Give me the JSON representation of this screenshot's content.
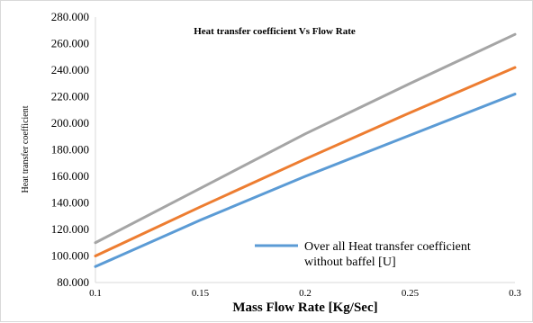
{
  "chart_data": {
    "type": "line",
    "title": "Heat transfer coefficient Vs Flow Rate",
    "xlabel": "Mass Flow Rate [Kg/Sec]",
    "ylabel": "Heat transfer coefficient",
    "xlim": [
      0.1,
      0.3
    ],
    "ylim": [
      80,
      280
    ],
    "x_ticks": [
      "0.1",
      "0.15",
      "0.2",
      "0.25",
      "0.3"
    ],
    "y_ticks": [
      "80.000",
      "100.000",
      "120.000",
      "140.000",
      "160.000",
      "180.000",
      "200.000",
      "220.000",
      "240.000",
      "260.000",
      "280.000"
    ],
    "grid": false,
    "legend_position": "bottom-right",
    "x": [
      0.1,
      0.15,
      0.2,
      0.25,
      0.3
    ],
    "series": [
      {
        "name": "Over all Heat transfer coefficient without baffel [U]",
        "values": [
          92,
          127,
          160,
          191,
          222
        ],
        "color": "#5b9bd5",
        "legend_lines": [
          "Over all Heat transfer coefficient",
          "without baffel [U]"
        ]
      },
      {
        "values": [
          100,
          137,
          173,
          208,
          242
        ],
        "color": "#ed7d31"
      },
      {
        "values": [
          110,
          151,
          192,
          230,
          267
        ],
        "color": "#a5a5a5"
      }
    ]
  }
}
